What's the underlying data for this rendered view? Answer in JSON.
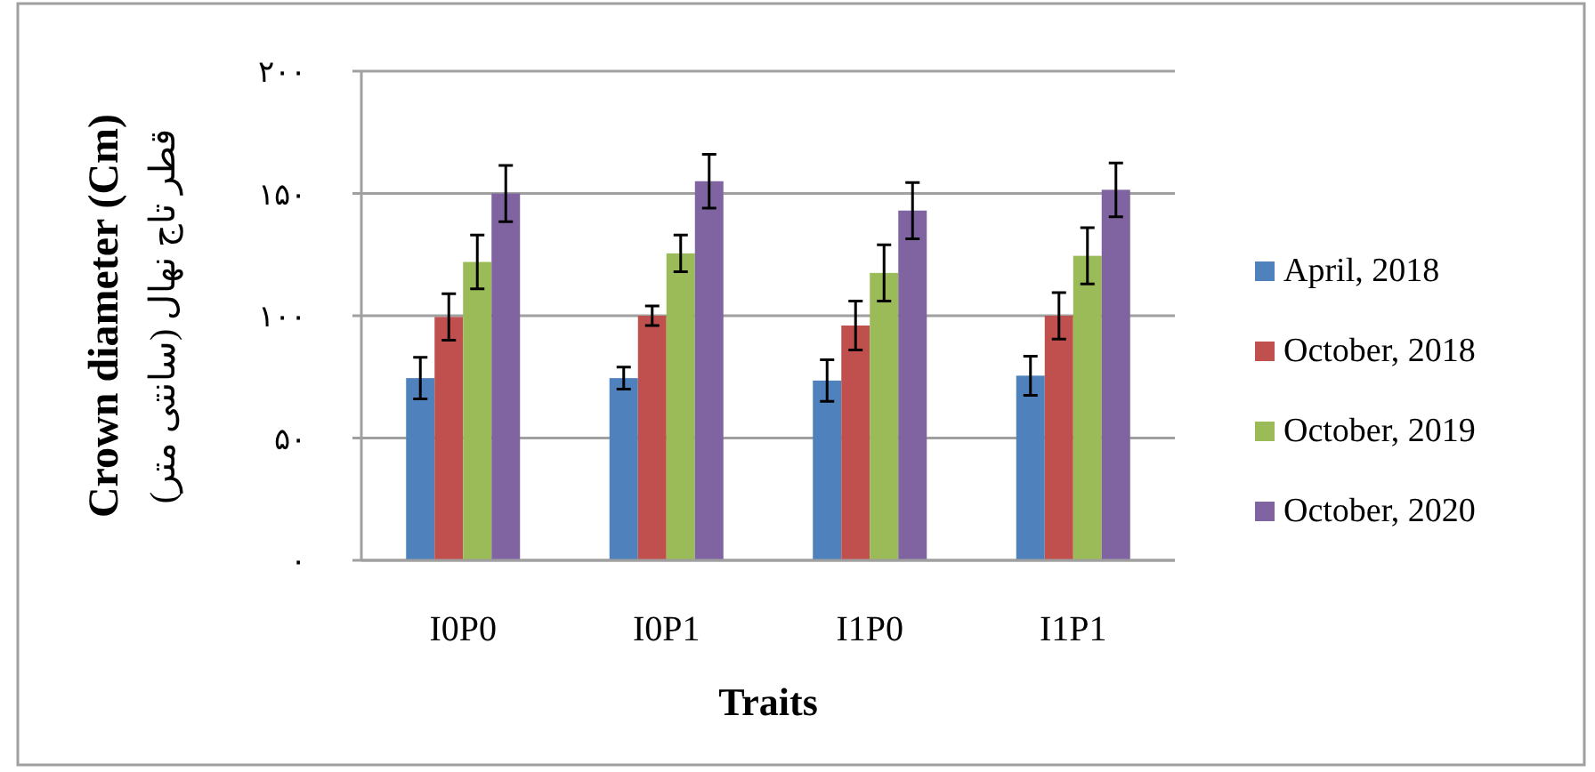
{
  "chart_data": {
    "type": "bar",
    "xlabel": "Traits",
    "ylabel": "Crown diameter (Cm)\nقطر تاج نهال (سانتی متر)",
    "categories": [
      "I0P0",
      "I0P1",
      "I1P0",
      "I1P1"
    ],
    "series": [
      {
        "name": "April, 2018",
        "color": "#4f81bd",
        "values": [
          74.5,
          74.5,
          73.5,
          75.5
        ],
        "errors": [
          8.5,
          4.5,
          8.5,
          8
        ]
      },
      {
        "name": "October, 2018",
        "color": "#c0504d",
        "values": [
          99.5,
          100,
          96,
          100
        ],
        "errors": [
          9.5,
          4,
          10,
          9.5
        ]
      },
      {
        "name": "October, 2019",
        "color": "#9bbb59",
        "values": [
          122,
          125.5,
          117.5,
          124.5
        ],
        "errors": [
          11,
          7.5,
          11.5,
          11.5
        ]
      },
      {
        "name": "October, 2020",
        "color": "#8064a2",
        "values": [
          150,
          155,
          143,
          151.5
        ],
        "errors": [
          11.5,
          11,
          11.5,
          11
        ]
      }
    ],
    "ylim": [
      0,
      200
    ],
    "yticks": [
      {
        "value": 0,
        "label": "۰"
      },
      {
        "value": 50,
        "label": "۵۰"
      },
      {
        "value": 100,
        "label": "۱۰۰"
      },
      {
        "value": 150,
        "label": "۱۵۰"
      },
      {
        "value": 200,
        "label": "۲۰۰"
      }
    ],
    "grid": "y",
    "legend": "right"
  }
}
